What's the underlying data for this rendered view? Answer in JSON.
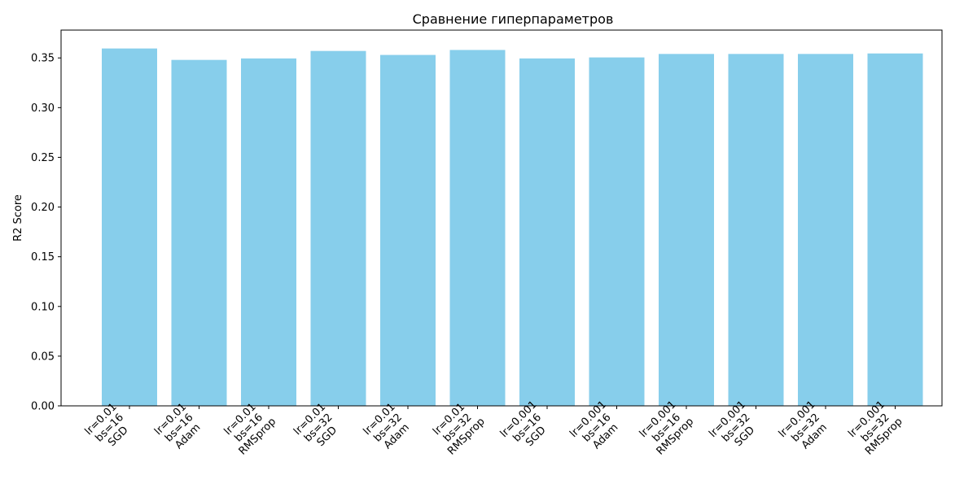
{
  "chart_data": {
    "type": "bar",
    "title": "Сравнение гиперпараметров",
    "xlabel": "",
    "ylabel": "R2 Score",
    "categories": [
      [
        "lr=0.01",
        "bs=16",
        "SGD"
      ],
      [
        "lr=0.01",
        "bs=16",
        "Adam"
      ],
      [
        "lr=0.01",
        "bs=16",
        "RMSprop"
      ],
      [
        "lr=0.01",
        "bs=32",
        "SGD"
      ],
      [
        "lr=0.01",
        "bs=32",
        "Adam"
      ],
      [
        "lr=0.01",
        "bs=32",
        "RMSprop"
      ],
      [
        "lr=0.001",
        "bs=16",
        "SGD"
      ],
      [
        "lr=0.001",
        "bs=16",
        "Adam"
      ],
      [
        "lr=0.001",
        "bs=16",
        "RMSprop"
      ],
      [
        "lr=0.001",
        "bs=32",
        "SGD"
      ],
      [
        "lr=0.001",
        "bs=32",
        "Adam"
      ],
      [
        "lr=0.001",
        "bs=32",
        "RMSprop"
      ]
    ],
    "values": [
      0.3595,
      0.348,
      0.3495,
      0.357,
      0.353,
      0.358,
      0.3495,
      0.3505,
      0.354,
      0.354,
      0.354,
      0.3545
    ],
    "ylim": [
      0,
      0.378
    ],
    "yticks": [
      "0.00",
      "0.05",
      "0.10",
      "0.15",
      "0.20",
      "0.25",
      "0.30",
      "0.35"
    ],
    "bar_color": "#87ceeb",
    "grid": false,
    "legend": "none"
  }
}
